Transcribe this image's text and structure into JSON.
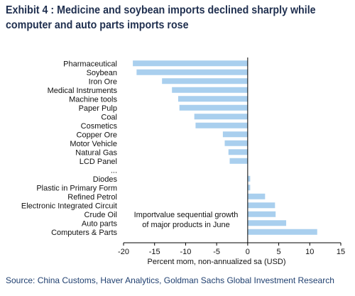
{
  "title": "Exhibit 4 : Medicine and soybean imports declined sharply while computer and auto parts imports rose",
  "source": "Source: China Customs, Haver Analytics, Goldman Sachs Global Investment Research",
  "chart_data": {
    "type": "bar",
    "orientation": "horizontal",
    "categories": [
      "Pharmaceutical",
      "Soybean",
      "Iron Ore",
      "Medical Instruments",
      "Machine tools",
      "Paper Pulp",
      "Coal",
      "Cosmetics",
      "Copper Ore",
      "Motor Vehicle",
      "Natural Gas",
      "LCD Panel",
      "...",
      "Diodes",
      "Plastic in Primary Form",
      "Refined Petrol",
      "Electronic Integrated Circuit",
      "Crude Oil",
      "Auto parts",
      "Computers & Parts"
    ],
    "values": [
      -18.5,
      -17.9,
      -13.8,
      -12.2,
      -11.2,
      -11.0,
      -8.6,
      -8.4,
      -4.0,
      -3.7,
      -3.1,
      -2.9,
      null,
      0.4,
      0.4,
      2.8,
      4.4,
      4.5,
      6.2,
      11.2
    ],
    "xlim": [
      -20,
      15
    ],
    "xticks": [
      -20,
      -15,
      -10,
      -5,
      0,
      5,
      10,
      15
    ],
    "xlabel": "Percent mom, non-annualized sa (USD)",
    "annotation": [
      "Importvalue sequential growth",
      "of major products in June"
    ],
    "bar_color": "#a9cfee",
    "grid": false
  }
}
